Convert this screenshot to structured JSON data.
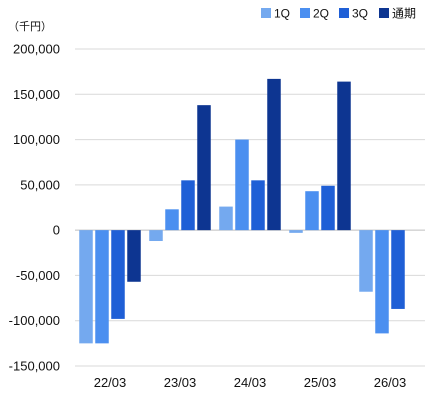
{
  "chart_data": {
    "type": "bar",
    "unit_label": "（千円）",
    "categories": [
      "22/03",
      "23/03",
      "24/03",
      "25/03",
      "26/03"
    ],
    "series": [
      {
        "name": "1Q",
        "color": "#74a9ef",
        "values": [
          -125000,
          -12000,
          26000,
          -3000,
          -68000
        ]
      },
      {
        "name": "2Q",
        "color": "#4b8ff0",
        "values": [
          -125000,
          23000,
          100000,
          43000,
          -114000
        ]
      },
      {
        "name": "3Q",
        "color": "#1f5fd6",
        "values": [
          -98000,
          55000,
          55000,
          49000,
          -87000
        ]
      },
      {
        "name": "通期",
        "color": "#0d3591",
        "values": [
          -57000,
          138000,
          167000,
          164000,
          null
        ]
      }
    ],
    "ylim": [
      -150000,
      200000
    ],
    "yticks": [
      "200,000",
      "150,000",
      "100,000",
      "50,000",
      "0",
      "-50,000",
      "-100,000",
      "-150,000"
    ],
    "ytick_values": [
      200000,
      150000,
      100000,
      50000,
      0,
      -50000,
      -100000,
      -150000
    ],
    "grid": true,
    "legend_position": "top-right"
  }
}
